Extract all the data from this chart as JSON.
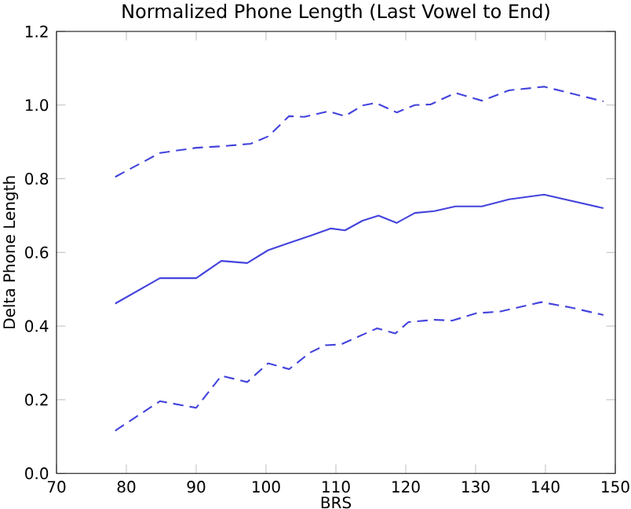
{
  "chart_data": {
    "type": "line",
    "title": "Normalized Phone Length (Last Vowel to End)",
    "xlabel": "BRS",
    "ylabel": "Delta Phone Length",
    "xlim": [
      70,
      150
    ],
    "ylim": [
      0,
      1.2
    ],
    "xticks": [
      70,
      80,
      90,
      100,
      110,
      120,
      130,
      140,
      150
    ],
    "yticks": [
      {
        "value": 0,
        "label": "0.0"
      },
      {
        "value": 0.2,
        "label": "0.2"
      },
      {
        "value": 0.4,
        "label": "0.4"
      },
      {
        "value": 0.6,
        "label": "0.6"
      },
      {
        "value": 0.8,
        "label": "0.8"
      },
      {
        "value": 1,
        "label": "1.0"
      },
      {
        "value": 1.2,
        "label": "1.2"
      }
    ],
    "grid": false,
    "marker": "none",
    "series": [
      {
        "color": "#4444dd",
        "line_style": "dashed",
        "x": [
          78.4,
          84.8,
          90,
          93.6,
          97.8,
          100.3,
          103.3,
          105.5,
          108.9,
          111.3,
          113.8,
          115.7,
          118.7,
          121.3,
          123.6,
          127.1,
          130.9,
          134.8,
          139.8,
          148.3
        ],
        "values": [
          0.805,
          0.87,
          0.884,
          0.888,
          0.895,
          0.915,
          0.97,
          0.968,
          0.983,
          0.97,
          0.999,
          1.006,
          0.98,
          1.0,
          1.002,
          1.033,
          1.012,
          1.04,
          1.05,
          1.01
        ]
      },
      {
        "color": "#4444dd",
        "line_style": "solid",
        "x": [
          78.4,
          84.8,
          90,
          93.6,
          97.3,
          100.3,
          103.3,
          106.3,
          109.3,
          111.3,
          113.8,
          116.1,
          118.7,
          121.3,
          124.1,
          127.1,
          130.9,
          134.8,
          139.8,
          148.3
        ],
        "values": [
          0.461,
          0.53,
          0.53,
          0.577,
          0.571,
          0.606,
          0.626,
          0.645,
          0.665,
          0.66,
          0.686,
          0.7,
          0.68,
          0.707,
          0.712,
          0.725,
          0.725,
          0.744,
          0.757,
          0.72
        ]
      },
      {
        "color": "#4444dd",
        "line_style": "dashed",
        "x": [
          78.4,
          84.8,
          90,
          93.6,
          97.3,
          100.3,
          103.3,
          106.3,
          108.5,
          110.7,
          115.9,
          118.5,
          120.4,
          124.1,
          126.7,
          130.1,
          133.4,
          139.4,
          143.5,
          148.3
        ],
        "values": [
          0.116,
          0.196,
          0.178,
          0.265,
          0.248,
          0.299,
          0.283,
          0.328,
          0.348,
          0.35,
          0.394,
          0.38,
          0.411,
          0.417,
          0.415,
          0.435,
          0.439,
          0.465,
          0.451,
          0.43
        ]
      }
    ]
  }
}
